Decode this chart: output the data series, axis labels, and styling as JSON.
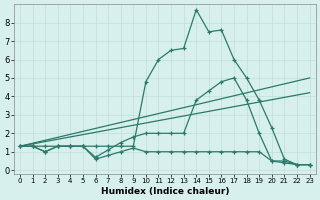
{
  "xlabel": "Humidex (Indice chaleur)",
  "bg_color": "#d7f0ee",
  "grid_color": "#c0deda",
  "line_color": "#2a7a6a",
  "xlim": [
    -0.5,
    23.5
  ],
  "ylim": [
    -0.2,
    9.0
  ],
  "xticks": [
    0,
    1,
    2,
    3,
    4,
    5,
    6,
    7,
    8,
    9,
    10,
    11,
    12,
    13,
    14,
    15,
    16,
    17,
    18,
    19,
    20,
    21,
    22,
    23
  ],
  "yticks": [
    0,
    1,
    2,
    3,
    4,
    5,
    6,
    7,
    8
  ],
  "line_main_x": [
    0,
    1,
    2,
    3,
    4,
    5,
    6,
    7,
    8,
    9,
    10,
    11,
    12,
    13,
    14,
    15,
    16,
    17,
    18,
    19,
    20,
    21,
    22,
    23
  ],
  "line_main_y": [
    1.3,
    1.3,
    1.3,
    1.3,
    1.3,
    1.3,
    1.3,
    1.3,
    1.3,
    1.3,
    4.8,
    6.0,
    6.5,
    6.6,
    8.7,
    7.5,
    7.6,
    6.0,
    5.0,
    3.8,
    2.3,
    0.6,
    0.3,
    0.3
  ],
  "line_mid_x": [
    0,
    1,
    2,
    3,
    4,
    5,
    6,
    7,
    8,
    9,
    10,
    11,
    12,
    13,
    14,
    15,
    16,
    17,
    18,
    19,
    20,
    21,
    22,
    23
  ],
  "line_mid_y": [
    1.3,
    1.3,
    1.0,
    1.3,
    1.3,
    1.3,
    0.7,
    1.1,
    1.5,
    1.8,
    2.0,
    2.0,
    2.0,
    2.0,
    3.8,
    4.3,
    4.8,
    5.0,
    3.8,
    2.0,
    0.5,
    0.5,
    0.3,
    0.3
  ],
  "line_low_x": [
    0,
    1,
    2,
    3,
    4,
    5,
    6,
    7,
    8,
    9,
    10,
    11,
    12,
    13,
    14,
    15,
    16,
    17,
    18,
    19,
    20,
    21,
    22,
    23
  ],
  "line_low_y": [
    1.3,
    1.3,
    1.0,
    1.3,
    1.3,
    1.3,
    0.6,
    0.8,
    1.0,
    1.2,
    1.0,
    1.0,
    1.0,
    1.0,
    1.0,
    1.0,
    1.0,
    1.0,
    1.0,
    1.0,
    0.5,
    0.4,
    0.3,
    0.3
  ],
  "trend1_x": [
    0,
    23
  ],
  "trend1_y": [
    1.3,
    5.0
  ],
  "trend2_x": [
    0,
    23
  ],
  "trend2_y": [
    1.3,
    4.2
  ]
}
